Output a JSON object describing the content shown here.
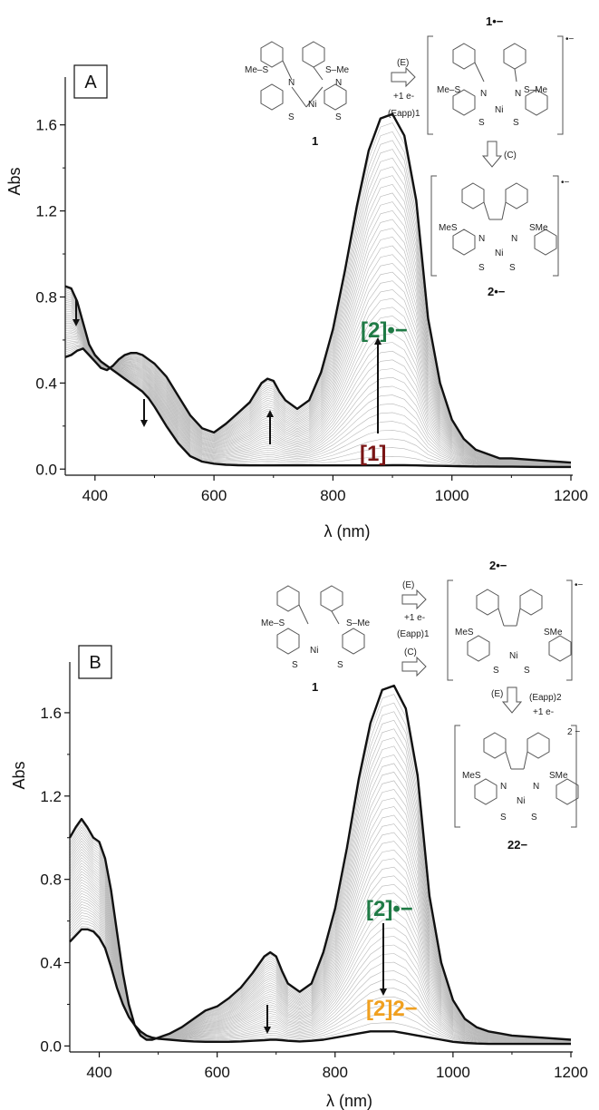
{
  "chart_data": [
    {
      "type": "line",
      "panel": "A",
      "xlabel": "λ (nm)",
      "ylabel": "Abs",
      "xlim": [
        350,
        1200
      ],
      "ylim": [
        -0.02,
        1.78
      ],
      "xticks": [
        "400",
        "600",
        "800",
        "1000",
        "1200"
      ],
      "yticks": [
        "0.0",
        "0.4",
        "0.8",
        "1.2",
        "1.6"
      ],
      "colors": {
        "species1": "#7a1515",
        "species2rad": "#1f7a45",
        "curves": "#b8b8b8",
        "bold": "#111111"
      },
      "series": [
        {
          "name": "[1]",
          "x": [
            350,
            360,
            370,
            380,
            390,
            400,
            410,
            420,
            430,
            440,
            450,
            460,
            470,
            480,
            490,
            500,
            520,
            540,
            560,
            580,
            600,
            620,
            640,
            660,
            680,
            690,
            700,
            710,
            720,
            740,
            760,
            780,
            800,
            820,
            840,
            860,
            880,
            900,
            920,
            940,
            960,
            980,
            1000,
            1020,
            1040,
            1060,
            1080,
            1100,
            1150,
            1200
          ],
          "y": [
            0.85,
            0.84,
            0.78,
            0.68,
            0.58,
            0.53,
            0.5,
            0.48,
            0.46,
            0.44,
            0.42,
            0.4,
            0.38,
            0.36,
            0.33,
            0.29,
            0.2,
            0.12,
            0.06,
            0.035,
            0.025,
            0.02,
            0.018,
            0.017,
            0.017,
            0.017,
            0.017,
            0.017,
            0.017,
            0.017,
            0.017,
            0.017,
            0.017,
            0.017,
            0.017,
            0.017,
            0.017,
            0.018,
            0.018,
            0.017,
            0.016,
            0.015,
            0.014,
            0.013,
            0.012,
            0.012,
            0.011,
            0.011,
            0.01,
            0.01
          ]
        },
        {
          "name": "[2]•−",
          "x": [
            350,
            360,
            370,
            380,
            390,
            400,
            410,
            420,
            430,
            440,
            450,
            460,
            470,
            480,
            490,
            500,
            520,
            540,
            560,
            580,
            600,
            620,
            640,
            660,
            680,
            690,
            700,
            710,
            720,
            740,
            760,
            780,
            800,
            820,
            840,
            860,
            880,
            900,
            920,
            940,
            960,
            980,
            1000,
            1020,
            1040,
            1060,
            1080,
            1100,
            1150,
            1200
          ],
          "y": [
            0.52,
            0.53,
            0.55,
            0.56,
            0.53,
            0.5,
            0.47,
            0.46,
            0.48,
            0.51,
            0.53,
            0.54,
            0.54,
            0.53,
            0.51,
            0.49,
            0.43,
            0.34,
            0.25,
            0.19,
            0.17,
            0.21,
            0.26,
            0.31,
            0.4,
            0.42,
            0.41,
            0.36,
            0.32,
            0.28,
            0.32,
            0.45,
            0.65,
            0.92,
            1.22,
            1.48,
            1.63,
            1.65,
            1.55,
            1.25,
            0.7,
            0.4,
            0.23,
            0.14,
            0.09,
            0.07,
            0.05,
            0.05,
            0.04,
            0.03
          ]
        }
      ],
      "annotations": [
        "[1]",
        "[2]•−"
      ],
      "scheme": {
        "top_label": "1•−",
        "left_label": "1",
        "bottom_label": "2•−",
        "step_e": "(E)",
        "step_e_sub": "+1 e-",
        "step_e_app": "(Eapp)1",
        "step_c": "(C)",
        "charge": "•−",
        "mes": "Me–S",
        "sme": "S–Me",
        "mes2": "MeS",
        "sme2": "SMe",
        "ni": "Ni",
        "n": "N",
        "s": "S"
      }
    },
    {
      "type": "line",
      "panel": "B",
      "xlabel": "λ (nm)",
      "ylabel": "Abs",
      "xlim": [
        350,
        1200
      ],
      "ylim": [
        -0.02,
        1.8
      ],
      "xticks": [
        "400",
        "600",
        "800",
        "1000",
        "1200"
      ],
      "yticks": [
        "0.0",
        "0.4",
        "0.8",
        "1.2",
        "1.6"
      ],
      "colors": {
        "species2rad": "#1f7a45",
        "species2dianion": "#f0a020",
        "curves": "#b8b8b8",
        "bold": "#111111"
      },
      "series": [
        {
          "name": "[2]•−",
          "x": [
            350,
            360,
            370,
            380,
            390,
            400,
            410,
            420,
            430,
            440,
            450,
            460,
            470,
            480,
            490,
            500,
            520,
            540,
            560,
            580,
            600,
            620,
            640,
            660,
            680,
            690,
            700,
            710,
            720,
            740,
            760,
            780,
            800,
            820,
            840,
            860,
            880,
            900,
            920,
            940,
            960,
            980,
            1000,
            1020,
            1040,
            1060,
            1080,
            1100,
            1150,
            1200
          ],
          "y": [
            1.0,
            1.05,
            1.09,
            1.05,
            1.0,
            0.98,
            0.9,
            0.75,
            0.55,
            0.35,
            0.2,
            0.1,
            0.05,
            0.03,
            0.03,
            0.04,
            0.06,
            0.09,
            0.13,
            0.17,
            0.19,
            0.23,
            0.28,
            0.35,
            0.43,
            0.45,
            0.43,
            0.36,
            0.3,
            0.26,
            0.3,
            0.45,
            0.66,
            0.95,
            1.28,
            1.55,
            1.71,
            1.73,
            1.62,
            1.3,
            0.72,
            0.4,
            0.22,
            0.13,
            0.09,
            0.07,
            0.06,
            0.05,
            0.04,
            0.03
          ]
        },
        {
          "name": "[2]2−",
          "x": [
            350,
            360,
            370,
            380,
            390,
            400,
            410,
            420,
            430,
            440,
            450,
            460,
            470,
            480,
            490,
            500,
            520,
            540,
            560,
            580,
            600,
            620,
            640,
            660,
            680,
            690,
            700,
            710,
            720,
            740,
            760,
            780,
            800,
            820,
            840,
            860,
            880,
            900,
            920,
            940,
            960,
            980,
            1000,
            1020,
            1040,
            1060,
            1080,
            1100,
            1150,
            1200
          ],
          "y": [
            0.5,
            0.53,
            0.56,
            0.56,
            0.55,
            0.52,
            0.47,
            0.38,
            0.28,
            0.2,
            0.14,
            0.1,
            0.07,
            0.05,
            0.04,
            0.035,
            0.03,
            0.025,
            0.022,
            0.02,
            0.02,
            0.02,
            0.022,
            0.025,
            0.028,
            0.03,
            0.03,
            0.028,
            0.025,
            0.022,
            0.025,
            0.03,
            0.04,
            0.05,
            0.06,
            0.07,
            0.07,
            0.07,
            0.06,
            0.05,
            0.04,
            0.03,
            0.02,
            0.015,
            0.012,
            0.01,
            0.01,
            0.01,
            0.01,
            0.01
          ]
        }
      ],
      "annotations": [
        "[2]•−",
        "[2]2−"
      ],
      "scheme": {
        "top_label": "2•−",
        "left_label": "1",
        "bottom_label": "22−",
        "step_e": "(E)",
        "step_e_sub": "+1 e-",
        "step_e_app": "(Eapp)1",
        "step_c": "(C)",
        "step_e2": "(E)",
        "step_e2_app": "(Eapp)2",
        "step_e2_sub": "+1 e-",
        "charge": "•−",
        "charge2": "2 −",
        "mes": "Me–S",
        "sme": "S–Me",
        "mes2": "MeS",
        "sme2": "SMe",
        "ni": "Ni",
        "n": "N",
        "s": "S"
      }
    }
  ]
}
